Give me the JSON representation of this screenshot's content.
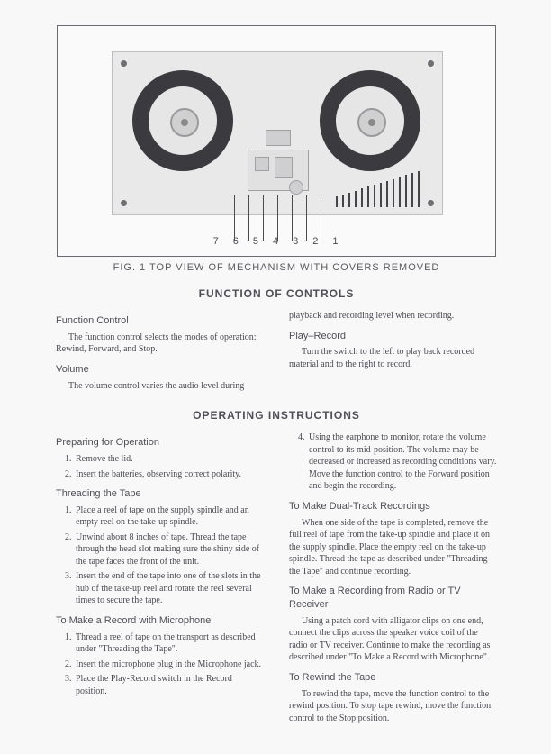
{
  "figure": {
    "caption": "FIG. 1 TOP VIEW OF MECHANISM WITH COVERS REMOVED",
    "callouts": [
      "7",
      "6",
      "5",
      "4",
      "3",
      "2",
      "1"
    ]
  },
  "section_controls": "FUNCTION OF CONTROLS",
  "section_operating": "OPERATING INSTRUCTIONS",
  "left": {
    "function_control_h": "Function Control",
    "function_control_p": "The function control selects the modes of operation:  Rewind,  Forward,  and Stop.",
    "volume_h": "Volume",
    "volume_p": "The volume control varies the audio level during"
  },
  "right": {
    "cont_p": "playback and recording level when recording.",
    "playrecord_h": "Play–Record",
    "playrecord_p": "Turn the switch to the left to play back recorded material and to the right to record."
  },
  "ops_left": {
    "prep_h": "Preparing for Operation",
    "prep_1": "Remove the lid.",
    "prep_2": "Insert the batteries, observing correct polarity.",
    "thread_h": "Threading the Tape",
    "thread_1": "Place a reel of tape on the supply spindle and an empty reel on the take-up spindle.",
    "thread_2": "Unwind about 8 inches of tape.  Thread the tape through the head slot making sure the shiny side of the tape faces the front of the unit.",
    "thread_3": "Insert the end of the tape into one of the slots in the hub of the take-up reel and rotate the reel several times to secure the tape.",
    "mic_h": "To Make a Record with Microphone",
    "mic_1": "Thread a reel of tape on the transport as described under \"Threading the Tape\".",
    "mic_2": "Insert the microphone plug in the Microphone jack.",
    "mic_3": "Place the Play-Record switch in the Record position."
  },
  "ops_right": {
    "mic_4": "Using the earphone to monitor, rotate the volume control to its mid-position.  The volume may be decreased or increased as recording conditions vary.  Move the function control to the Forward position and begin the recording.",
    "dual_h": "To Make Dual-Track Recordings",
    "dual_p": "When one side of the tape is completed, remove the full reel of tape from the take-up spindle and place it on the supply spindle.  Place the empty reel on the take-up spindle.  Thread the tape as described under \"Threading the Tape\" and continue recording.",
    "radio_h": "To Make a Recording from Radio or TV Receiver",
    "radio_p": "Using a patch cord with alligator clips on one end, connect the clips across the speaker voice coil of the radio or TV receiver.  Continue to make the recording as described under \"To Make a Record with Microphone\".",
    "rewind_h": "To Rewind the Tape",
    "rewind_p": "To rewind the tape, move the function control to the rewind position.  To stop tape rewind, move the function control to the Stop position."
  }
}
